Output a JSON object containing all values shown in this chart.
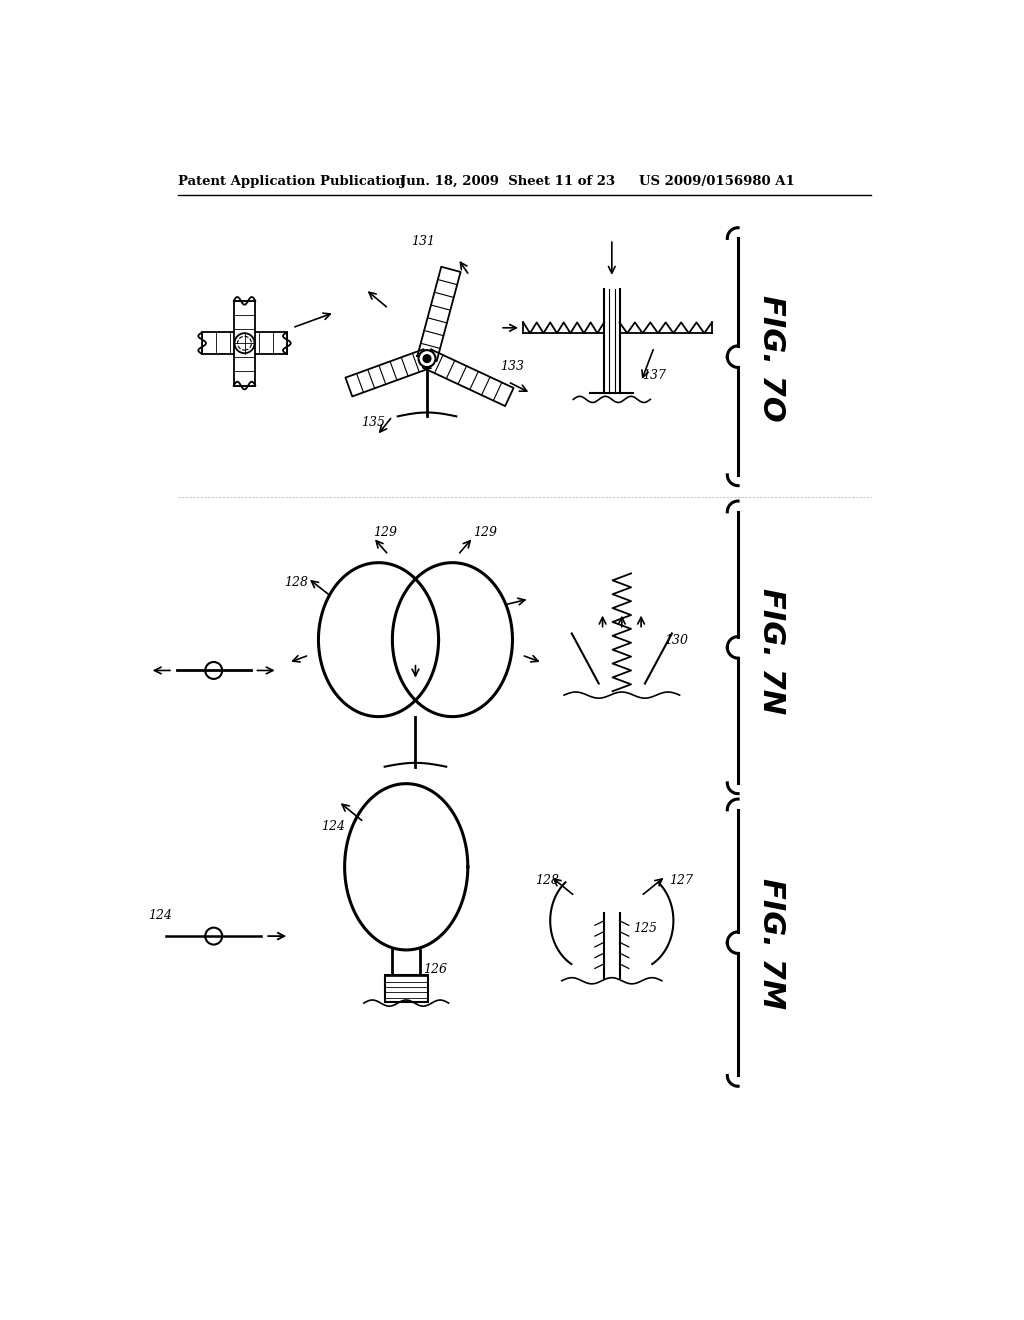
{
  "bg_color": "#ffffff",
  "line_color": "#000000",
  "header_left": "Patent Application Publication",
  "header_center": "Jun. 18, 2009  Sheet 11 of 23",
  "header_right": "US 2009/0156980 A1",
  "fig_labels": [
    "FIG. 7O",
    "FIG. 7N",
    "FIG. 7M"
  ],
  "ref_numbers_7O": [
    "131",
    "133",
    "135",
    "137"
  ],
  "ref_numbers_7N": [
    "128",
    "129",
    "130"
  ],
  "ref_numbers_7M": [
    "124",
    "126",
    "125",
    "127",
    "128"
  ]
}
